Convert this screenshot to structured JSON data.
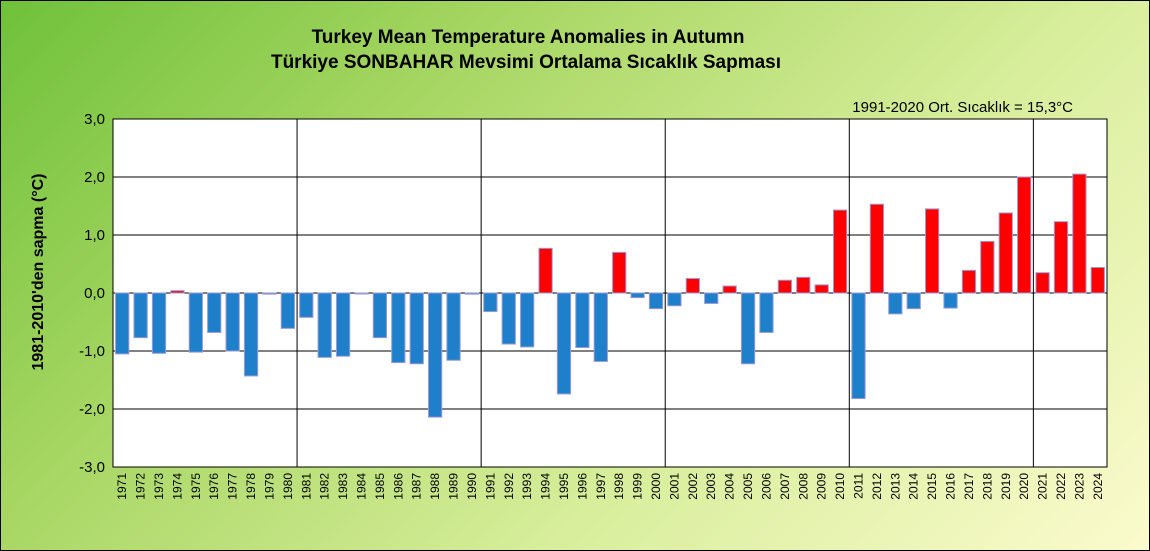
{
  "chart_data": {
    "type": "bar",
    "title": "Turkey Mean Temperature Anomalies in Autumn",
    "subtitle": "Türkiye SONBAHAR Mevsimi Ortalama Sıcaklık Sapması",
    "annotation": "1991-2020 Ort. Sıcaklık = 15,3°C",
    "ylabel": "1981-2010'den sapma (°C)",
    "xlabel": "",
    "ylim": [
      -3.0,
      3.0
    ],
    "yticks": [
      "3,0",
      "2,0",
      "1,0",
      "0,0",
      "-1,0",
      "-2,0",
      "-3,0"
    ],
    "grid": true,
    "legend": "none",
    "colors": {
      "negative": "#1e7fcb",
      "positive": "#ff0000",
      "bar_edge": "#9a9ad6",
      "grid": "#000000",
      "plot_bg": "#ffffff"
    },
    "categories": [
      "1971",
      "1972",
      "1973",
      "1974",
      "1975",
      "1976",
      "1977",
      "1978",
      "1979",
      "1980",
      "1981",
      "1982",
      "1983",
      "1984",
      "1985",
      "1986",
      "1987",
      "1988",
      "1989",
      "1990",
      "1991",
      "1992",
      "1993",
      "1994",
      "1995",
      "1996",
      "1997",
      "1998",
      "1999",
      "2000",
      "2001",
      "2002",
      "2003",
      "2004",
      "2005",
      "2006",
      "2007",
      "2008",
      "2009",
      "2010",
      "2011",
      "2012",
      "2013",
      "2014",
      "2015",
      "2016",
      "2017",
      "2018",
      "2019",
      "2020",
      "2021",
      "2022",
      "2023",
      "2024"
    ],
    "values": [
      -1.05,
      -0.77,
      -1.04,
      0.04,
      -1.02,
      -0.68,
      -1.0,
      -1.43,
      -0.02,
      -0.61,
      -0.42,
      -1.11,
      -1.09,
      -0.01,
      -0.77,
      -1.2,
      -1.22,
      -2.14,
      -1.16,
      -0.02,
      -0.32,
      -0.88,
      -0.93,
      0.77,
      -1.74,
      -0.94,
      -1.18,
      0.7,
      -0.08,
      -0.27,
      -0.22,
      0.25,
      -0.18,
      0.12,
      -1.22,
      -0.68,
      0.22,
      0.27,
      0.14,
      1.43,
      -1.82,
      1.53,
      -0.36,
      -0.27,
      1.45,
      -0.26,
      0.39,
      0.89,
      1.38,
      2.0,
      0.35,
      1.23,
      2.05,
      0.44
    ]
  }
}
